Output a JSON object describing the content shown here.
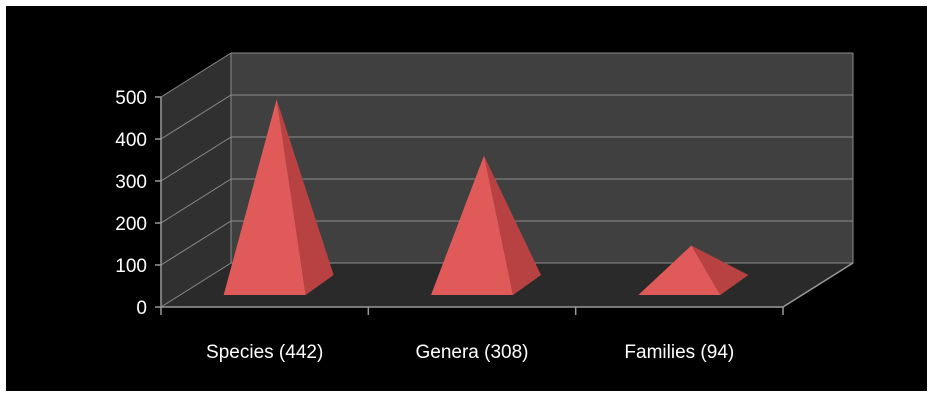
{
  "chart_data": {
    "type": "bar",
    "bar_shape": "pyramid",
    "style": "3d",
    "categories": [
      "Species (442)",
      "Genera (308)",
      "Families (94)"
    ],
    "values": [
      442,
      308,
      94
    ],
    "title": "",
    "xlabel": "",
    "ylabel": "",
    "ylim": [
      0,
      500
    ],
    "yticks": [
      0,
      100,
      200,
      300,
      400,
      500
    ],
    "grid": true,
    "legend": "none",
    "colors": {
      "background": "#000000",
      "back_wall": "#404040",
      "side_wall": "#303030",
      "floor": "#2a2a2a",
      "gridline": "#8c8c8c",
      "axis": "#9a9a9a",
      "pyramid_front": "#e05a5a",
      "pyramid_side": "#b84242",
      "text": "#ffffff"
    }
  }
}
